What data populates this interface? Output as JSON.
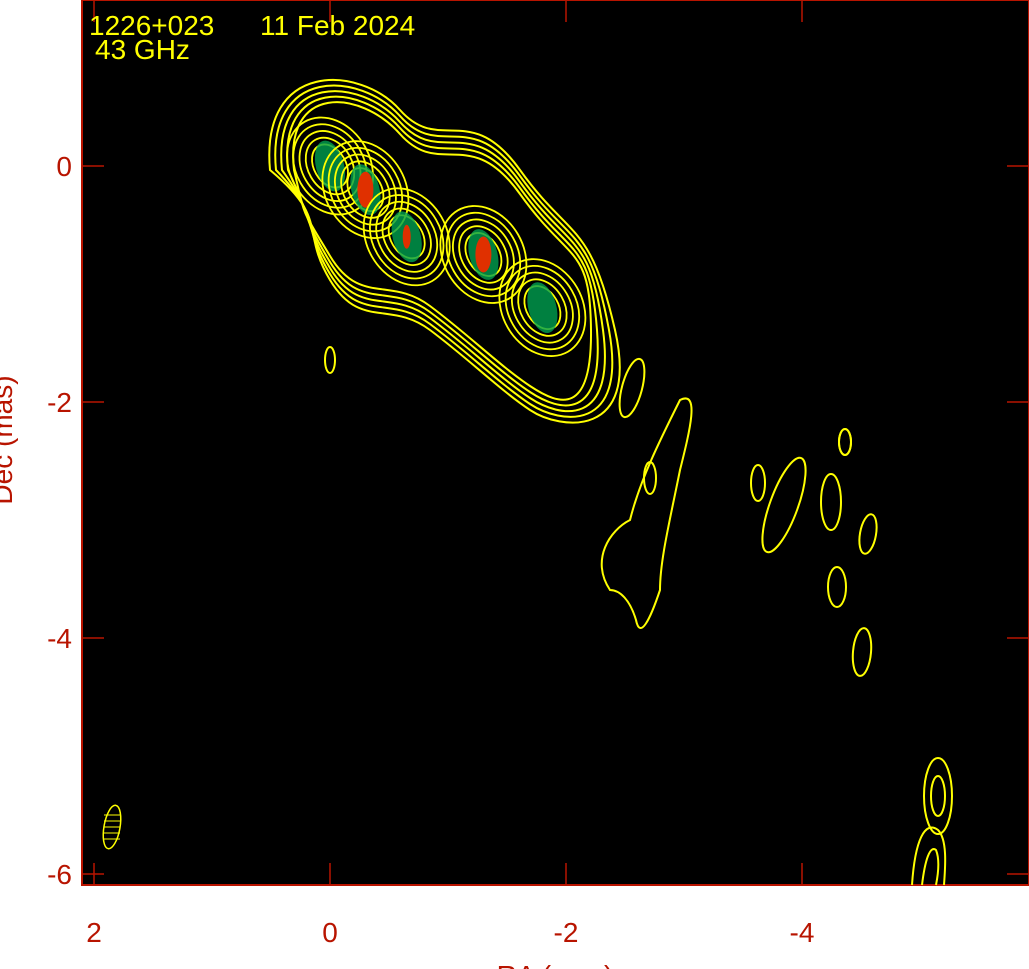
{
  "chart_data": {
    "type": "contour",
    "title": "1226+023",
    "date": "11 Feb 2024",
    "frequency": "43 GHz",
    "xlabel": "RA (mas)",
    "ylabel": "Dec (mas)",
    "xlim": [
      2.1,
      -5.9
    ],
    "ylim": [
      -6.1,
      1.4
    ],
    "xticks": [
      "2",
      "0",
      "-2",
      "-4"
    ],
    "xtick_values": [
      2,
      0,
      -2,
      -4
    ],
    "yticks": [
      "0",
      "-2",
      "-4",
      "-6"
    ],
    "ytick_values": [
      0,
      -2,
      -4,
      -6
    ],
    "components": [
      {
        "ra": 0.0,
        "dec": 0.0
      },
      {
        "ra": -0.3,
        "dec": -0.2
      },
      {
        "ra": -0.65,
        "dec": -0.6
      },
      {
        "ra": -1.3,
        "dec": -0.75
      },
      {
        "ra": -1.8,
        "dec": -1.2
      }
    ],
    "colors": {
      "frame": "#b81400",
      "contour": "#ffff00",
      "background": "#000000",
      "peak": "#e03000",
      "mid": "#00a050"
    }
  }
}
